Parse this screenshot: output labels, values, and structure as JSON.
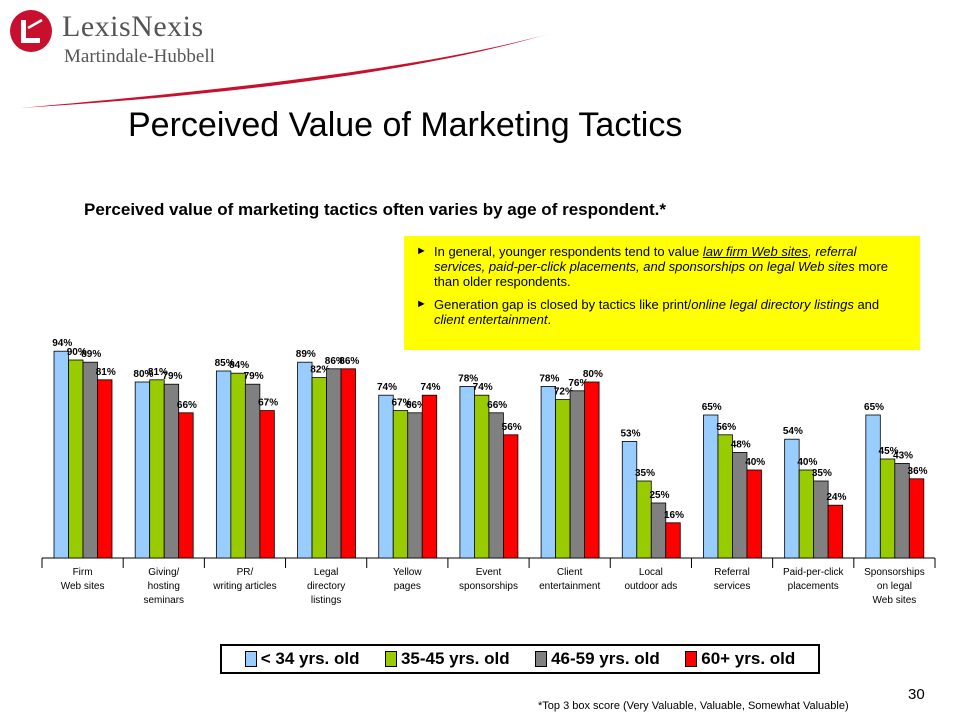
{
  "logo": {
    "name": "LexisNexis",
    "sub": "Martindale-Hubbell",
    "colors": {
      "mark": "#c8102e",
      "text": "#555555"
    }
  },
  "title": "Perceived Value of Marketing Tactics",
  "subtitle": "Perceived value of marketing tactics often varies by age of respondent.*",
  "note": {
    "bullets": [
      {
        "parts": [
          {
            "text": "In general, younger respondents tend to value ",
            "style": "plain"
          },
          {
            "text": "law firm Web sites",
            "style": "italic-underline"
          },
          {
            "text": ", referral services, paid-per-click placements, and sponsorships on legal Web sites",
            "style": "italic"
          },
          {
            "text": " more than older respondents.",
            "style": "plain"
          }
        ]
      },
      {
        "parts": [
          {
            "text": "Generation gap is closed by tactics like print/",
            "style": "plain"
          },
          {
            "text": "online legal directory listings",
            "style": "italic"
          },
          {
            "text": " and ",
            "style": "plain"
          },
          {
            "text": "client entertainment",
            "style": "italic"
          },
          {
            "text": ".",
            "style": "plain"
          }
        ]
      }
    ]
  },
  "chart_data": {
    "type": "bar",
    "title": "",
    "xlabel": "",
    "ylabel": "",
    "ylim": [
      0,
      100
    ],
    "grid": false,
    "legend_position": "bottom",
    "categories": [
      "Firm\nWeb sites",
      "Giving/\nhosting\nseminars",
      "PR/\nwriting articles",
      "Legal\ndirectory\nlistings",
      "Yellow\npages",
      "Event\nsponsorships",
      "Client\nentertainment",
      "Local\noutdoor ads",
      "Referral\nservices",
      "Paid-per-click\nplacements",
      "Sponsorships\non legal\nWeb sites"
    ],
    "series": [
      {
        "name": "< 34 yrs. old",
        "color": "#99ccff",
        "values": [
          94,
          80,
          85,
          89,
          74,
          78,
          78,
          53,
          65,
          54,
          65
        ]
      },
      {
        "name": "35-45 yrs. old",
        "color": "#99cc00",
        "values": [
          90,
          81,
          84,
          82,
          67,
          74,
          72,
          35,
          56,
          40,
          45
        ]
      },
      {
        "name": "46-59 yrs. old",
        "color": "#808080",
        "values": [
          89,
          79,
          79,
          86,
          66,
          66,
          76,
          25,
          48,
          35,
          43
        ]
      },
      {
        "name": "60+ yrs. old",
        "color": "#ff0000",
        "values": [
          81,
          66,
          67,
          86,
          74,
          56,
          80,
          16,
          40,
          24,
          36
        ]
      }
    ],
    "value_suffix": "%"
  },
  "page_number": "30",
  "footnote": "*Top 3 box score (Very Valuable, Valuable, Somewhat Valuable)"
}
